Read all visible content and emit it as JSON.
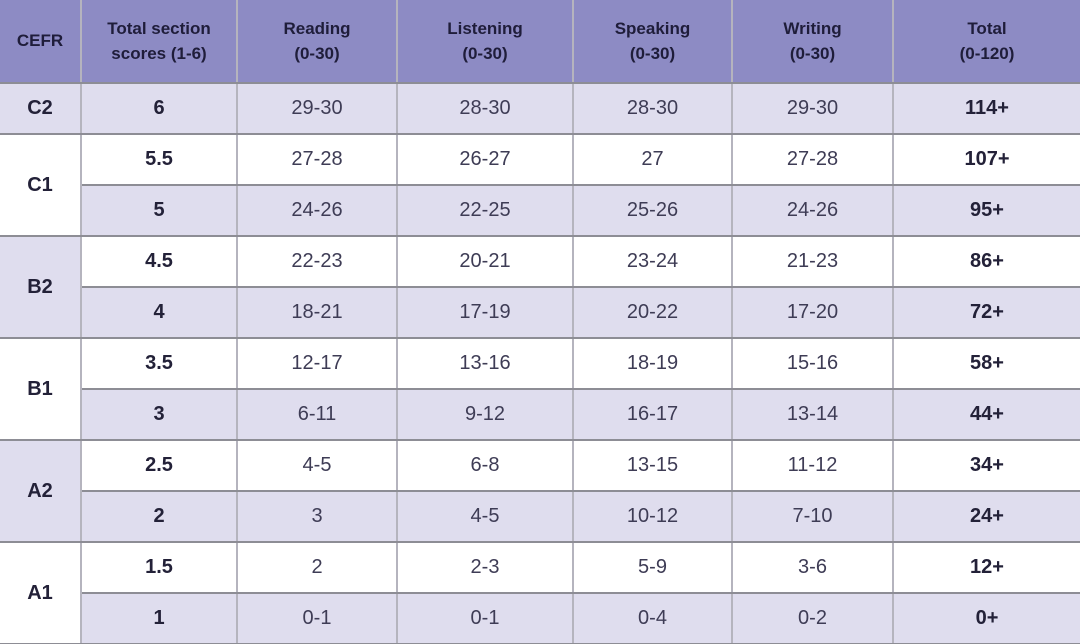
{
  "colors": {
    "header_bg": "#8d8bc4",
    "row_alt_bg": "#dfddee",
    "row_bg": "#ffffff",
    "header_text": "#1f1d3a",
    "bold_text": "#232138",
    "value_text": "#3e3c55",
    "border_horizontal": "#8d8d95",
    "border_vertical": "#b5b4be"
  },
  "chart_data": {
    "type": "table",
    "columns": [
      "CEFR",
      "Total section scores (1-6)",
      "Reading (0-30)",
      "Listening (0-30)",
      "Speaking (0-30)",
      "Writing (0-30)",
      "Total (0-120)"
    ],
    "rows": [
      [
        "C2",
        "6",
        "29-30",
        "28-30",
        "28-30",
        "29-30",
        "114+"
      ],
      [
        "C1",
        "5.5",
        "27-28",
        "26-27",
        "27",
        "27-28",
        "107+"
      ],
      [
        "C1",
        "5",
        "24-26",
        "22-25",
        "25-26",
        "24-26",
        "95+"
      ],
      [
        "B2",
        "4.5",
        "22-23",
        "20-21",
        "23-24",
        "21-23",
        "86+"
      ],
      [
        "B2",
        "4",
        "18-21",
        "17-19",
        "20-22",
        "17-20",
        "72+"
      ],
      [
        "B1",
        "3.5",
        "12-17",
        "13-16",
        "18-19",
        "15-16",
        "58+"
      ],
      [
        "B1",
        "3",
        "6-11",
        "9-12",
        "16-17",
        "13-14",
        "44+"
      ],
      [
        "A2",
        "2.5",
        "4-5",
        "6-8",
        "13-15",
        "11-12",
        "34+"
      ],
      [
        "A2",
        "2",
        "3",
        "4-5",
        "10-12",
        "7-10",
        "24+"
      ],
      [
        "A1",
        "1.5",
        "2",
        "2-3",
        "5-9",
        "3-6",
        "12+"
      ],
      [
        "A1",
        "1",
        "0-1",
        "0-1",
        "0-4",
        "0-2",
        "0+"
      ]
    ]
  },
  "table": {
    "headers": {
      "cefr": {
        "label": "CEFR",
        "sub": ""
      },
      "score": {
        "label": "Total section",
        "sub": "scores (1-6)"
      },
      "reading": {
        "label": "Reading",
        "sub": "(0-30)"
      },
      "listening": {
        "label": "Listening",
        "sub": "(0-30)"
      },
      "speaking": {
        "label": "Speaking",
        "sub": "(0-30)"
      },
      "writing": {
        "label": "Writing",
        "sub": "(0-30)"
      },
      "total": {
        "label": "Total",
        "sub": "(0-120)"
      }
    },
    "bands": [
      {
        "cefr": "C2",
        "rows": [
          {
            "score": "6",
            "reading": "29-30",
            "listening": "28-30",
            "speaking": "28-30",
            "writing": "29-30",
            "total": "114+"
          }
        ]
      },
      {
        "cefr": "C1",
        "rows": [
          {
            "score": "5.5",
            "reading": "27-28",
            "listening": "26-27",
            "speaking": "27",
            "writing": "27-28",
            "total": "107+"
          },
          {
            "score": "5",
            "reading": "24-26",
            "listening": "22-25",
            "speaking": "25-26",
            "writing": "24-26",
            "total": "95+"
          }
        ]
      },
      {
        "cefr": "B2",
        "rows": [
          {
            "score": "4.5",
            "reading": "22-23",
            "listening": "20-21",
            "speaking": "23-24",
            "writing": "21-23",
            "total": "86+"
          },
          {
            "score": "4",
            "reading": "18-21",
            "listening": "17-19",
            "speaking": "20-22",
            "writing": "17-20",
            "total": "72+"
          }
        ]
      },
      {
        "cefr": "B1",
        "rows": [
          {
            "score": "3.5",
            "reading": "12-17",
            "listening": "13-16",
            "speaking": "18-19",
            "writing": "15-16",
            "total": "58+"
          },
          {
            "score": "3",
            "reading": "6-11",
            "listening": "9-12",
            "speaking": "16-17",
            "writing": "13-14",
            "total": "44+"
          }
        ]
      },
      {
        "cefr": "A2",
        "rows": [
          {
            "score": "2.5",
            "reading": "4-5",
            "listening": "6-8",
            "speaking": "13-15",
            "writing": "11-12",
            "total": "34+"
          },
          {
            "score": "2",
            "reading": "3",
            "listening": "4-5",
            "speaking": "10-12",
            "writing": "7-10",
            "total": "24+"
          }
        ]
      },
      {
        "cefr": "A1",
        "rows": [
          {
            "score": "1.5",
            "reading": "2",
            "listening": "2-3",
            "speaking": "5-9",
            "writing": "3-6",
            "total": "12+"
          },
          {
            "score": "1",
            "reading": "0-1",
            "listening": "0-1",
            "speaking": "0-4",
            "writing": "0-2",
            "total": "0+"
          }
        ]
      }
    ]
  }
}
